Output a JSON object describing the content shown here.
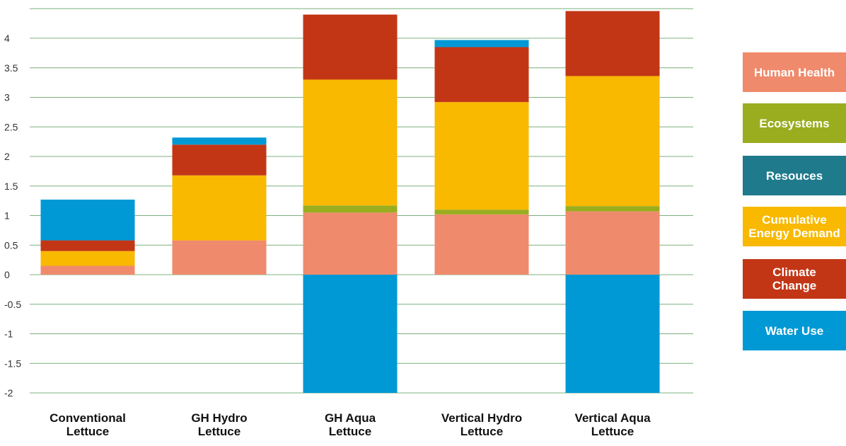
{
  "chart_data": {
    "type": "bar",
    "stacked": true,
    "categories": [
      "Conventional\nLettuce",
      "GH Hydro\nLettuce",
      "GH Aqua\nLettuce",
      "Vertical Hydro\nLettuce",
      "Vertical Aqua\nLettuce"
    ],
    "series": [
      {
        "name": "Human Health",
        "color": "#f08a6c",
        "values": [
          0.15,
          0.58,
          1.05,
          1.02,
          1.07
        ]
      },
      {
        "name": "Ecosystems",
        "color": "#9aad1f",
        "values": [
          0.0,
          0.0,
          0.12,
          0.08,
          0.09
        ]
      },
      {
        "name": "Resouces",
        "color": "#1f7a8c",
        "values": [
          0.0,
          0.0,
          0.0,
          0.0,
          0.0
        ]
      },
      {
        "name": "Cumulative Energy Demand",
        "color": "#f8b900",
        "values": [
          0.25,
          1.1,
          2.13,
          1.82,
          2.2
        ]
      },
      {
        "name": "Climate Change",
        "color": "#c23616",
        "values": [
          0.18,
          0.52,
          1.1,
          0.93,
          1.1
        ]
      },
      {
        "name": "Water Use",
        "color": "#0099d5",
        "values": [
          0.69,
          0.12,
          -2.0,
          0.12,
          -2.0
        ]
      }
    ],
    "ylim": [
      -2,
      4.5
    ],
    "yticks": [
      "-2",
      "-1.5",
      "-1",
      "-0.5",
      "0",
      "0.5",
      "1",
      "1.5",
      "2",
      "2.5",
      "3",
      "3.5",
      "4"
    ],
    "ytick_values": [
      -2,
      -1.5,
      -1,
      -0.5,
      0,
      0.5,
      1,
      1.5,
      2,
      2.5,
      3,
      3.5,
      4
    ],
    "grid": true,
    "gridline_color": "#7cb07f",
    "legend_position": "right",
    "legend": [
      {
        "label": "Human Health",
        "color": "#f08a6c"
      },
      {
        "label": "Ecosystems",
        "color": "#9aad1f"
      },
      {
        "label": "Resouces",
        "color": "#1f7a8c"
      },
      {
        "label": "Cumulative\nEnergy Demand",
        "color": "#f8b900"
      },
      {
        "label": "Climate\nChange",
        "color": "#c23616"
      },
      {
        "label": "Water Use",
        "color": "#0099d5"
      }
    ]
  }
}
